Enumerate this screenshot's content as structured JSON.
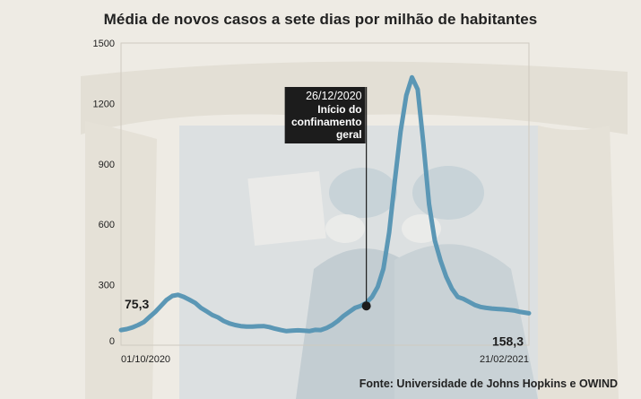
{
  "title": "Média de novos casos a sete dias por milhão de habitantes",
  "source": "Fonte: Universidade de Johns Hopkins e OWIND",
  "colors": {
    "line": "#5b97b5",
    "annotation_bg": "#1c1c1c",
    "annotation_text": "#ffffff",
    "axis_text": "#222222"
  },
  "chart_data": {
    "type": "line",
    "title": "Média de novos casos a sete dias por milhão de habitantes",
    "xlabel": "",
    "ylabel": "",
    "xlim": [
      "01/10/2020",
      "21/02/2021"
    ],
    "ylim": [
      0,
      1500
    ],
    "yticks": [
      0,
      300,
      600,
      900,
      1200,
      1500
    ],
    "ytick_labels": [
      "0",
      "300",
      "600",
      "900",
      "1200",
      "1500"
    ],
    "xtick_labels": [
      "01/10/2020",
      "21/02/2021"
    ],
    "grid": false,
    "series": [
      {
        "name": "",
        "x": [
          "2020-10-01",
          "2020-10-03",
          "2020-10-05",
          "2020-10-07",
          "2020-10-09",
          "2020-10-11",
          "2020-10-13",
          "2020-10-15",
          "2020-10-17",
          "2020-10-19",
          "2020-10-21",
          "2020-10-23",
          "2020-10-25",
          "2020-10-27",
          "2020-10-29",
          "2020-10-31",
          "2020-11-02",
          "2020-11-04",
          "2020-11-06",
          "2020-11-08",
          "2020-11-10",
          "2020-11-12",
          "2020-11-14",
          "2020-11-16",
          "2020-11-18",
          "2020-11-20",
          "2020-11-22",
          "2020-11-24",
          "2020-11-26",
          "2020-11-28",
          "2020-11-30",
          "2020-12-02",
          "2020-12-04",
          "2020-12-06",
          "2020-12-08",
          "2020-12-10",
          "2020-12-12",
          "2020-12-14",
          "2020-12-16",
          "2020-12-18",
          "2020-12-20",
          "2020-12-22",
          "2020-12-24",
          "2020-12-26",
          "2020-12-28",
          "2020-12-30",
          "2021-01-01",
          "2021-01-03",
          "2021-01-05",
          "2021-01-07",
          "2021-01-09",
          "2021-01-11",
          "2021-01-13",
          "2021-01-15",
          "2021-01-17",
          "2021-01-19",
          "2021-01-21",
          "2021-01-23",
          "2021-01-25",
          "2021-01-27",
          "2021-01-29",
          "2021-01-31",
          "2021-02-02",
          "2021-02-04",
          "2021-02-06",
          "2021-02-08",
          "2021-02-10",
          "2021-02-12",
          "2021-02-14",
          "2021-02-16",
          "2021-02-18",
          "2021-02-21"
        ],
        "y": [
          75.3,
          80,
          88,
          100,
          115,
          140,
          165,
          195,
          225,
          245,
          250,
          240,
          225,
          210,
          185,
          168,
          150,
          138,
          120,
          108,
          100,
          95,
          92,
          92,
          94,
          95,
          90,
          82,
          75,
          70,
          72,
          74,
          72,
          70,
          76,
          75,
          85,
          100,
          120,
          145,
          165,
          185,
          195,
          210,
          240,
          290,
          380,
          560,
          820,
          1060,
          1240,
          1330,
          1270,
          1000,
          700,
          520,
          420,
          340,
          280,
          240,
          230,
          215,
          200,
          190,
          185,
          182,
          180,
          178,
          175,
          172,
          165,
          158.3
        ]
      }
    ],
    "annotations": [
      {
        "date": "26/12/2020",
        "label": "Início do confinamento geral",
        "x": "2020-12-26",
        "y": 195
      },
      {
        "label": "75,3",
        "x": "2020-10-01",
        "y": 75.3
      },
      {
        "label": "158,3",
        "x": "2021-02-21",
        "y": 158.3
      }
    ]
  }
}
